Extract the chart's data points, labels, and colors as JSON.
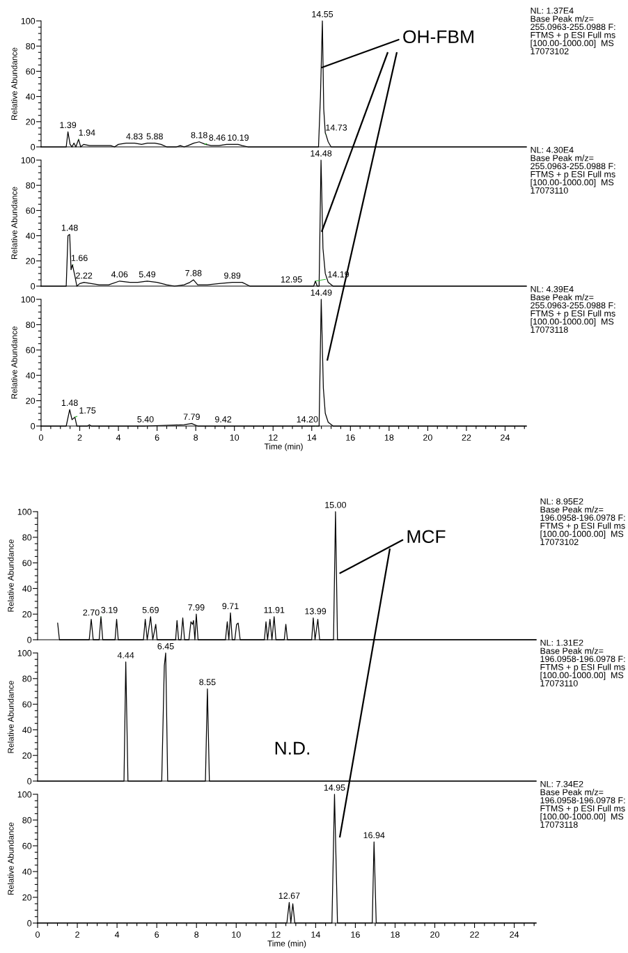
{
  "chart_data": [
    {
      "type": "line",
      "ylabel": "Relative Abundance",
      "xlim": [
        0,
        25.1
      ],
      "ylim": [
        0,
        100
      ],
      "tick_labels": "y",
      "grid": false,
      "yticks": [
        0,
        {
          "value": 5,
          "label": null
        },
        {
          "value": 10,
          "label": null
        },
        {
          "value": 15,
          "label": null
        },
        20,
        {
          "value": 25,
          "label": null
        },
        {
          "value": 30,
          "label": null
        },
        {
          "value": 35,
          "label": null
        },
        40,
        {
          "value": 45,
          "label": null
        },
        {
          "value": 50,
          "label": null
        },
        {
          "value": 55,
          "label": null
        },
        60,
        {
          "value": 65,
          "label": null
        },
        {
          "value": 70,
          "label": null
        },
        {
          "value": 75,
          "label": null
        },
        80,
        {
          "value": 85,
          "label": null
        },
        {
          "value": 90,
          "label": null
        },
        {
          "value": 95,
          "label": null
        },
        100
      ],
      "series": [
        {
          "color": "#000000",
          "x": [
            0,
            1.3,
            1.39,
            1.5,
            1.6,
            1.7,
            1.8,
            1.94,
            2.05,
            2.2,
            2.5,
            2.8,
            3.1,
            3.4,
            3.6,
            3.8,
            4.0,
            4.4,
            4.83,
            5.2,
            5.5,
            5.88,
            6.2,
            6.5,
            7.0,
            7.2,
            7.4,
            7.6,
            7.9,
            8.18,
            8.5,
            8.8,
            9.2,
            9.6,
            10.0,
            10.19,
            10.4,
            10.7,
            14.35,
            14.45,
            14.55,
            14.62,
            14.7,
            14.73,
            14.85,
            15.0,
            25.1
          ],
          "values": [
            0,
            0,
            12,
            2,
            0,
            3,
            0,
            6,
            0,
            2,
            1,
            1,
            1,
            1,
            1,
            0,
            2,
            3,
            3,
            2,
            3,
            3,
            2,
            0,
            0,
            1,
            0,
            1,
            3,
            4,
            2,
            1,
            1,
            2,
            2,
            2,
            1,
            0,
            0,
            40,
            100,
            30,
            11,
            10,
            4,
            0,
            0
          ]
        }
      ],
      "annotations": [
        "NL: 1.37E4\nBase Peak m/z=\n255.0963-255.0988 F:\nFTMS + p ESI Full ms\n[100.00-1000.00]  MS\n17073102",
        {
          "text": "1.39",
          "x": 1.39,
          "y": 12
        },
        {
          "text": "1.94",
          "x": 1.94,
          "y": 6
        },
        {
          "text": "4.83",
          "x": 4.83,
          "y": 3
        },
        {
          "text": "5.88",
          "x": 5.88,
          "y": 3
        },
        {
          "text": "8.18",
          "x": 8.18,
          "y": 4
        },
        {
          "text": "8.46",
          "x": 8.46,
          "y": 2
        },
        {
          "text": "10.19",
          "x": 10.19,
          "y": 2
        },
        {
          "text": "14.55",
          "x": 14.55,
          "y": 100
        },
        {
          "text": "14.73",
          "x": 14.73,
          "y": 10
        },
        {
          "text": "OH-FBM",
          "x": 14.52,
          "y": 63
        }
      ]
    },
    {
      "type": "line",
      "ylabel": "Relative Abundance",
      "xlim": [
        0,
        25.1
      ],
      "ylim": [
        0,
        100
      ],
      "tick_labels": "y",
      "grid": false,
      "yticks": [
        0,
        {
          "value": 5,
          "label": null
        },
        {
          "value": 10,
          "label": null
        },
        {
          "value": 15,
          "label": null
        },
        20,
        {
          "value": 25,
          "label": null
        },
        {
          "value": 30,
          "label": null
        },
        {
          "value": 35,
          "label": null
        },
        40,
        {
          "value": 45,
          "label": null
        },
        {
          "value": 50,
          "label": null
        },
        {
          "value": 55,
          "label": null
        },
        60,
        {
          "value": 65,
          "label": null
        },
        {
          "value": 70,
          "label": null
        },
        {
          "value": 75,
          "label": null
        },
        80,
        {
          "value": 85,
          "label": null
        },
        {
          "value": 90,
          "label": null
        },
        {
          "value": 95,
          "label": null
        },
        100
      ],
      "series": [
        {
          "color": "#000000",
          "x": [
            0,
            1.3,
            1.39,
            1.48,
            1.55,
            1.62,
            1.75,
            1.85,
            2.0,
            2.22,
            2.6,
            3.0,
            3.5,
            4.06,
            4.6,
            5.0,
            5.49,
            6.0,
            6.5,
            6.9,
            7.4,
            7.7,
            7.88,
            8.1,
            8.6,
            9.2,
            9.89,
            10.4,
            10.8,
            14.1,
            14.19,
            14.28,
            14.38,
            14.48,
            14.58,
            14.7,
            14.85,
            15.1,
            25.1
          ],
          "values": [
            0,
            0,
            40,
            41,
            13,
            17,
            8,
            0,
            2,
            3,
            2,
            1,
            1,
            4,
            3,
            3,
            4,
            3,
            1,
            0,
            1,
            3,
            5,
            1,
            1,
            2,
            3,
            3,
            0,
            0,
            4,
            0,
            0,
            100,
            30,
            10,
            3,
            0,
            0
          ]
        }
      ],
      "annotations": [
        "NL: 4.30E4\nBase Peak m/z=\n255.0963-255.0988 F:\nFTMS + p ESI Full ms\n[100.00-1000.00]  MS\n17073110",
        {
          "text": "1.48",
          "x": 1.48,
          "y": 41
        },
        {
          "text": "1.66",
          "x": 1.66,
          "y": 17
        },
        {
          "text": "2.22",
          "x": 2.22,
          "y": 3
        },
        {
          "text": "4.06",
          "x": 4.06,
          "y": 4
        },
        {
          "text": "5.49",
          "x": 5.49,
          "y": 4
        },
        {
          "text": "7.88",
          "x": 7.88,
          "y": 5
        },
        {
          "text": "9.89",
          "x": 9.89,
          "y": 3
        },
        {
          "text": "12.95",
          "x": 12.95,
          "y": 0
        },
        {
          "text": "14.19",
          "x": 14.19,
          "y": 4
        },
        {
          "text": "14.48",
          "x": 14.48,
          "y": 100
        }
      ]
    },
    {
      "type": "line",
      "xlabel": "Time (min)",
      "ylabel": "Relative Abundance",
      "xlim": [
        0,
        25.1
      ],
      "ylim": [
        0,
        100
      ],
      "grid": false,
      "xticks": [
        0,
        {
          "value": 0.5,
          "label": null
        },
        {
          "value": 1,
          "label": null
        },
        {
          "value": 1.5,
          "label": null
        },
        2,
        {
          "value": 2.5,
          "label": null
        },
        {
          "value": 3,
          "label": null
        },
        {
          "value": 3.5,
          "label": null
        },
        4,
        {
          "value": 4.5,
          "label": null
        },
        {
          "value": 5,
          "label": null
        },
        {
          "value": 5.5,
          "label": null
        },
        6,
        {
          "value": 6.5,
          "label": null
        },
        {
          "value": 7,
          "label": null
        },
        {
          "value": 7.5,
          "label": null
        },
        8,
        {
          "value": 8.5,
          "label": null
        },
        {
          "value": 9,
          "label": null
        },
        {
          "value": 9.5,
          "label": null
        },
        10,
        {
          "value": 10.5,
          "label": null
        },
        {
          "value": 11,
          "label": null
        },
        {
          "value": 11.5,
          "label": null
        },
        12,
        {
          "value": 12.5,
          "label": null
        },
        {
          "value": 13,
          "label": null
        },
        {
          "value": 13.5,
          "label": null
        },
        14,
        {
          "value": 14.5,
          "label": null
        },
        {
          "value": 15,
          "label": null
        },
        {
          "value": 15.5,
          "label": null
        },
        16,
        {
          "value": 16.5,
          "label": null
        },
        {
          "value": 17,
          "label": null
        },
        {
          "value": 17.5,
          "label": null
        },
        18,
        {
          "value": 18.5,
          "label": null
        },
        {
          "value": 19,
          "label": null
        },
        {
          "value": 19.5,
          "label": null
        },
        20,
        {
          "value": 20.5,
          "label": null
        },
        {
          "value": 21,
          "label": null
        },
        {
          "value": 21.5,
          "label": null
        },
        22,
        {
          "value": 22.5,
          "label": null
        },
        {
          "value": 23,
          "label": null
        },
        {
          "value": 23.5,
          "label": null
        },
        24,
        {
          "value": 24.5,
          "label": null
        },
        {
          "value": 25,
          "label": null
        }
      ],
      "yticks": [
        0,
        {
          "value": 5,
          "label": null
        },
        {
          "value": 10,
          "label": null
        },
        {
          "value": 15,
          "label": null
        },
        20,
        {
          "value": 25,
          "label": null
        },
        {
          "value": 30,
          "label": null
        },
        {
          "value": 35,
          "label": null
        },
        40,
        {
          "value": 45,
          "label": null
        },
        {
          "value": 50,
          "label": null
        },
        {
          "value": 55,
          "label": null
        },
        60,
        {
          "value": 65,
          "label": null
        },
        {
          "value": 70,
          "label": null
        },
        {
          "value": 75,
          "label": null
        },
        80,
        {
          "value": 85,
          "label": null
        },
        {
          "value": 90,
          "label": null
        },
        {
          "value": 95,
          "label": null
        },
        100
      ],
      "series": [
        {
          "color": "#000000",
          "x": [
            0,
            1.3,
            1.48,
            1.6,
            1.75,
            1.85,
            2.4,
            2.5,
            2.6,
            5.4,
            7.4,
            7.79,
            8.1,
            14.2,
            14.38,
            14.49,
            14.6,
            14.7,
            14.85,
            15.1,
            25.1
          ],
          "values": [
            0,
            0,
            13,
            5,
            7,
            0,
            0,
            1,
            0,
            0,
            1,
            2,
            0,
            0,
            0,
            100,
            30,
            10,
            3,
            0,
            0
          ]
        }
      ],
      "annotations": [
        "NL: 4.39E4\nBase Peak m/z=\n255.0963-255.0988 F:\nFTMS + p ESI Full ms\n[100.00-1000.00]  MS\n17073118",
        {
          "text": "1.48",
          "x": 1.48,
          "y": 13
        },
        {
          "text": "1.75",
          "x": 1.75,
          "y": 7
        },
        {
          "text": "5.40",
          "x": 5.4,
          "y": 0
        },
        {
          "text": "7.79",
          "x": 7.79,
          "y": 2
        },
        {
          "text": "9.42",
          "x": 9.42,
          "y": 0
        },
        {
          "text": "14.20",
          "x": 14.2,
          "y": 0
        },
        {
          "text": "14.49",
          "x": 14.49,
          "y": 100
        }
      ]
    },
    {
      "type": "line",
      "ylabel": "Relative Abundance",
      "xlim": [
        0,
        25.1
      ],
      "ylim": [
        0,
        100
      ],
      "tick_labels": "y",
      "grid": false,
      "yticks": [
        0,
        {
          "value": 5,
          "label": null
        },
        {
          "value": 10,
          "label": null
        },
        {
          "value": 15,
          "label": null
        },
        20,
        {
          "value": 25,
          "label": null
        },
        {
          "value": 30,
          "label": null
        },
        {
          "value": 35,
          "label": null
        },
        40,
        {
          "value": 45,
          "label": null
        },
        {
          "value": 50,
          "label": null
        },
        {
          "value": 55,
          "label": null
        },
        60,
        {
          "value": 65,
          "label": null
        },
        {
          "value": 70,
          "label": null
        },
        {
          "value": 75,
          "label": null
        },
        80,
        {
          "value": 85,
          "label": null
        },
        {
          "value": 90,
          "label": null
        },
        {
          "value": 95,
          "label": null
        },
        100
      ],
      "series": [
        {
          "color": "#000000",
          "x": [
            1.01,
            1.1,
            2.6,
            2.7,
            2.8,
            3.1,
            3.19,
            3.28,
            3.9,
            3.98,
            4.06,
            5.33,
            5.42,
            5.52,
            5.69,
            5.8,
            5.95,
            6.02,
            6.95,
            7.02,
            7.1,
            7.22,
            7.31,
            7.4,
            7.62,
            7.72,
            7.8,
            7.85,
            7.92,
            7.99,
            8.08,
            9.46,
            9.55,
            9.63,
            9.71,
            9.8,
            9.93,
            10.02,
            10.1,
            10.2,
            11.42,
            11.5,
            11.58,
            11.7,
            11.8,
            11.91,
            12.0,
            12.42,
            12.5,
            12.58,
            13.8,
            13.88,
            13.97,
            14.11,
            14.2,
            14.9,
            15.0,
            15.1,
            25.1
          ],
          "values": [
            13,
            0,
            0,
            16,
            0,
            0,
            18,
            0,
            0,
            16,
            0,
            0,
            16,
            0,
            18,
            0,
            12,
            0,
            0,
            15,
            0,
            0,
            17,
            0,
            0,
            14,
            12,
            15,
            0,
            20,
            0,
            0,
            14,
            0,
            21,
            0,
            0,
            12,
            13,
            0,
            0,
            14,
            0,
            16,
            0,
            18,
            0,
            0,
            12,
            0,
            0,
            17,
            0,
            16,
            0,
            0,
            100,
            0,
            0
          ]
        }
      ],
      "annotations": [
        "NL: 8.95E2\nBase Peak m/z=\n196.0958-196.0978 F:\nFTMS + p ESI Full ms\n[100.00-1000.00]  MS\n17073102",
        {
          "text": "2.70",
          "x": 2.7,
          "y": 16
        },
        {
          "text": "3.19",
          "x": 3.19,
          "y": 18
        },
        {
          "text": "5.69",
          "x": 5.69,
          "y": 18
        },
        {
          "text": "7.99",
          "x": 7.99,
          "y": 20
        },
        {
          "text": "9.71",
          "x": 9.71,
          "y": 21
        },
        {
          "text": "11.91",
          "x": 11.91,
          "y": 18
        },
        {
          "text": "13.99",
          "x": 13.99,
          "y": 17
        },
        {
          "text": "15.00",
          "x": 15.0,
          "y": 100
        },
        {
          "text": "MCF",
          "x": 15.23,
          "y": 52
        }
      ]
    },
    {
      "type": "line",
      "ylabel": "Relative Abundance",
      "xlim": [
        0,
        25.1
      ],
      "ylim": [
        0,
        100
      ],
      "tick_labels": "y",
      "grid": false,
      "yticks": [
        0,
        {
          "value": 5,
          "label": null
        },
        {
          "value": 10,
          "label": null
        },
        {
          "value": 15,
          "label": null
        },
        20,
        {
          "value": 25,
          "label": null
        },
        {
          "value": 30,
          "label": null
        },
        {
          "value": 35,
          "label": null
        },
        40,
        {
          "value": 45,
          "label": null
        },
        {
          "value": 50,
          "label": null
        },
        {
          "value": 55,
          "label": null
        },
        60,
        {
          "value": 65,
          "label": null
        },
        {
          "value": 70,
          "label": null
        },
        {
          "value": 75,
          "label": null
        },
        80,
        {
          "value": 85,
          "label": null
        },
        {
          "value": 90,
          "label": null
        },
        {
          "value": 95,
          "label": null
        },
        100
      ],
      "series": [
        {
          "color": "#000000",
          "x": [
            0,
            4.35,
            4.44,
            4.55,
            6.25,
            6.38,
            6.45,
            6.55,
            8.45,
            8.55,
            8.65,
            25.1
          ],
          "values": [
            0,
            0,
            93,
            0,
            0,
            90,
            100,
            0,
            0,
            72,
            0,
            0
          ]
        }
      ],
      "annotations": [
        "NL: 1.31E2\nBase Peak m/z=\n196.0958-196.0978 F:\nFTMS + p ESI Full ms\n[100.00-1000.00]  MS\n17073110",
        "N.D.",
        {
          "text": "4.44",
          "x": 4.44,
          "y": 93
        },
        {
          "text": "6.45",
          "x": 6.45,
          "y": 100
        },
        {
          "text": "8.55",
          "x": 8.55,
          "y": 72
        }
      ]
    },
    {
      "type": "line",
      "xlabel": "Time (min)",
      "ylabel": "Relative Abundance",
      "xlim": [
        0,
        25.1
      ],
      "ylim": [
        0,
        100
      ],
      "grid": false,
      "xticks": [
        0,
        {
          "value": 0.5,
          "label": null
        },
        {
          "value": 1,
          "label": null
        },
        {
          "value": 1.5,
          "label": null
        },
        2,
        {
          "value": 2.5,
          "label": null
        },
        {
          "value": 3,
          "label": null
        },
        {
          "value": 3.5,
          "label": null
        },
        4,
        {
          "value": 4.5,
          "label": null
        },
        {
          "value": 5,
          "label": null
        },
        {
          "value": 5.5,
          "label": null
        },
        6,
        {
          "value": 6.5,
          "label": null
        },
        {
          "value": 7,
          "label": null
        },
        {
          "value": 7.5,
          "label": null
        },
        8,
        {
          "value": 8.5,
          "label": null
        },
        {
          "value": 9,
          "label": null
        },
        {
          "value": 9.5,
          "label": null
        },
        10,
        {
          "value": 10.5,
          "label": null
        },
        {
          "value": 11,
          "label": null
        },
        {
          "value": 11.5,
          "label": null
        },
        12,
        {
          "value": 12.5,
          "label": null
        },
        {
          "value": 13,
          "label": null
        },
        {
          "value": 13.5,
          "label": null
        },
        14,
        {
          "value": 14.5,
          "label": null
        },
        {
          "value": 15,
          "label": null
        },
        {
          "value": 15.5,
          "label": null
        },
        16,
        {
          "value": 16.5,
          "label": null
        },
        {
          "value": 17,
          "label": null
        },
        {
          "value": 17.5,
          "label": null
        },
        18,
        {
          "value": 18.5,
          "label": null
        },
        {
          "value": 19,
          "label": null
        },
        {
          "value": 19.5,
          "label": null
        },
        20,
        {
          "value": 20.5,
          "label": null
        },
        {
          "value": 21,
          "label": null
        },
        {
          "value": 21.5,
          "label": null
        },
        22,
        {
          "value": 22.5,
          "label": null
        },
        {
          "value": 23,
          "label": null
        },
        {
          "value": 23.5,
          "label": null
        },
        24,
        {
          "value": 24.5,
          "label": null
        },
        {
          "value": 25,
          "label": null
        }
      ],
      "yticks": [
        0,
        {
          "value": 5,
          "label": null
        },
        {
          "value": 10,
          "label": null
        },
        {
          "value": 15,
          "label": null
        },
        20,
        {
          "value": 25,
          "label": null
        },
        {
          "value": 30,
          "label": null
        },
        {
          "value": 35,
          "label": null
        },
        40,
        {
          "value": 45,
          "label": null
        },
        {
          "value": 50,
          "label": null
        },
        {
          "value": 55,
          "label": null
        },
        60,
        {
          "value": 65,
          "label": null
        },
        {
          "value": 70,
          "label": null
        },
        {
          "value": 75,
          "label": null
        },
        80,
        {
          "value": 85,
          "label": null
        },
        {
          "value": 90,
          "label": null
        },
        {
          "value": 95,
          "label": null
        },
        100
      ],
      "series": [
        {
          "color": "#000000",
          "x": [
            0,
            12.55,
            12.67,
            12.75,
            12.85,
            12.95,
            14.82,
            14.95,
            15.1,
            16.85,
            16.94,
            17.05,
            25.1
          ],
          "values": [
            0,
            0,
            16,
            0,
            15,
            0,
            0,
            100,
            0,
            0,
            63,
            0,
            0
          ]
        }
      ],
      "annotations": [
        "NL: 7.34E2\nBase Peak m/z=\n196.0958-196.0978 F:\nFTMS + p ESI Full ms\n[100.00-1000.00]  MS\n17073118",
        {
          "text": "12.67",
          "x": 12.67,
          "y": 16
        },
        {
          "text": "14.95",
          "x": 14.95,
          "y": 100
        },
        {
          "text": "16.94",
          "x": 16.94,
          "y": 63
        }
      ]
    }
  ]
}
